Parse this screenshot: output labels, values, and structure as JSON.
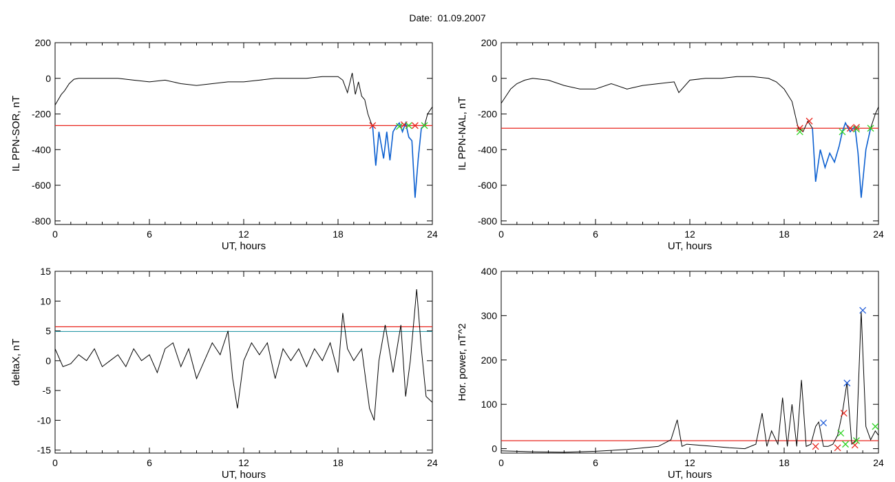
{
  "figure": {
    "title_label": "Date:",
    "title_value": "01.09.2007"
  },
  "colors": {
    "trace": "#000000",
    "threshold_red": "#e8231b",
    "threshold_teal": "#2c9aa8",
    "segment_blue": "#0b5fd0",
    "marker_red": "#e8231b",
    "marker_green": "#2bd21f",
    "marker_blue": "#1f5bd8"
  },
  "chart_data": [
    {
      "id": "panel-top-left",
      "type": "line",
      "xlabel": "UT, hours",
      "ylabel": "IL PPN-SOR, nT",
      "xlim": [
        0,
        24
      ],
      "ylim": [
        -820,
        200
      ],
      "xticks": [
        0,
        6,
        12,
        18,
        24
      ],
      "yticks": [
        -800,
        -600,
        -400,
        -200,
        0,
        200
      ],
      "series": [
        {
          "style": "black",
          "x": [
            0,
            0.2,
            0.4,
            0.6,
            0.9,
            1.2,
            1.5,
            2,
            3,
            4,
            5,
            6,
            7,
            8,
            9,
            10,
            11,
            12,
            13,
            14,
            15,
            16,
            17,
            17.5,
            18,
            18.3,
            18.6,
            18.9,
            19.1,
            19.3,
            19.5,
            19.7,
            19.9,
            20.1,
            20.2
          ],
          "y": [
            -150,
            -120,
            -90,
            -70,
            -30,
            -5,
            0,
            0,
            0,
            0,
            -10,
            -20,
            -10,
            -30,
            -40,
            -30,
            -20,
            -20,
            -10,
            0,
            0,
            0,
            10,
            10,
            10,
            -10,
            -80,
            30,
            -90,
            -20,
            -100,
            -120,
            -200,
            -250,
            -265
          ]
        },
        {
          "style": "blue",
          "x": [
            20.2,
            20.4,
            20.6,
            20.9,
            21.1,
            21.3,
            21.5,
            21.7,
            21.9,
            22.1,
            22.3,
            22.5,
            22.7,
            22.9,
            23.1,
            23.3,
            23.5
          ],
          "y": [
            -265,
            -490,
            -300,
            -450,
            -300,
            -460,
            -300,
            -270,
            -250,
            -300,
            -250,
            -330,
            -350,
            -670,
            -450,
            -280,
            -265
          ]
        },
        {
          "style": "black",
          "x": [
            23.5,
            23.7,
            24
          ],
          "y": [
            -265,
            -200,
            -160
          ]
        }
      ],
      "thresholds": [
        {
          "color": "red",
          "y": -265
        }
      ],
      "markers": [
        {
          "color": "red",
          "x": 20.2,
          "y": -265
        },
        {
          "color": "green",
          "x": 21.9,
          "y": -270
        },
        {
          "color": "red",
          "x": 22.2,
          "y": -260
        },
        {
          "color": "green",
          "x": 22.5,
          "y": -265
        },
        {
          "color": "red",
          "x": 22.9,
          "y": -265
        },
        {
          "color": "green",
          "x": 23.5,
          "y": -265
        }
      ]
    },
    {
      "id": "panel-top-right",
      "type": "line",
      "xlabel": "UT, hours",
      "ylabel": "IL PPN-NAL, nT",
      "xlim": [
        0,
        24
      ],
      "ylim": [
        -820,
        200
      ],
      "xticks": [
        0,
        6,
        12,
        18,
        24
      ],
      "yticks": [
        -800,
        -600,
        -400,
        -200,
        0,
        200
      ],
      "series": [
        {
          "style": "black",
          "x": [
            0,
            0.3,
            0.6,
            1,
            1.5,
            2,
            3,
            4,
            5,
            6,
            7,
            8,
            9,
            10,
            11,
            11.3,
            12,
            13,
            14,
            15,
            16,
            17,
            17.5,
            18,
            18.5,
            18.9,
            19.2,
            19.5,
            19.8
          ],
          "y": [
            -140,
            -100,
            -60,
            -30,
            -10,
            0,
            -10,
            -40,
            -60,
            -60,
            -30,
            -60,
            -40,
            -30,
            -20,
            -80,
            -10,
            0,
            0,
            10,
            10,
            0,
            -20,
            -60,
            -130,
            -280,
            -300,
            -240,
            -280
          ]
        },
        {
          "style": "blue",
          "x": [
            19.8,
            20.0,
            20.3,
            20.6,
            20.9,
            21.2,
            21.5,
            21.7,
            21.9,
            22.2,
            22.5,
            22.7,
            22.9,
            23.2,
            23.5
          ],
          "y": [
            -280,
            -580,
            -400,
            -500,
            -420,
            -470,
            -380,
            -300,
            -250,
            -300,
            -270,
            -420,
            -670,
            -400,
            -280
          ]
        },
        {
          "style": "black",
          "x": [
            23.5,
            23.8,
            24
          ],
          "y": [
            -280,
            -200,
            -160
          ]
        }
      ],
      "thresholds": [
        {
          "color": "red",
          "y": -280
        }
      ],
      "markers": [
        {
          "color": "red",
          "x": 19.0,
          "y": -280
        },
        {
          "color": "green",
          "x": 19.0,
          "y": -300
        },
        {
          "color": "red",
          "x": 19.6,
          "y": -240
        },
        {
          "color": "green",
          "x": 21.7,
          "y": -300
        },
        {
          "color": "red",
          "x": 22.2,
          "y": -280
        },
        {
          "color": "green",
          "x": 22.6,
          "y": -285
        },
        {
          "color": "red",
          "x": 22.6,
          "y": -275
        },
        {
          "color": "green",
          "x": 23.5,
          "y": -280
        }
      ]
    },
    {
      "id": "panel-bottom-left",
      "type": "line",
      "xlabel": "UT, hours",
      "ylabel": "deltaX, nT",
      "xlim": [
        0,
        24
      ],
      "ylim": [
        -15.5,
        15
      ],
      "xticks": [
        0,
        6,
        12,
        18,
        24
      ],
      "yticks": [
        -15,
        -10,
        -5,
        0,
        5,
        10,
        15
      ],
      "series": [
        {
          "style": "black",
          "x": [
            0,
            0.5,
            1,
            1.5,
            2,
            2.5,
            3,
            3.5,
            4,
            4.5,
            5,
            5.5,
            6,
            6.5,
            7,
            7.5,
            8,
            8.5,
            9,
            9.5,
            10,
            10.5,
            11,
            11.3,
            11.6,
            12,
            12.5,
            13,
            13.5,
            14,
            14.5,
            15,
            15.5,
            16,
            16.5,
            17,
            17.5,
            18,
            18.3,
            18.6,
            19,
            19.5,
            20,
            20.3,
            20.6,
            21,
            21.5,
            22,
            22.3,
            22.6,
            23,
            23.3,
            23.6,
            24
          ],
          "y": [
            2,
            -1,
            -0.5,
            1,
            0,
            2,
            -1,
            0,
            1,
            -1,
            2,
            0,
            1,
            -2,
            2,
            3,
            -1,
            2,
            -3,
            0,
            3,
            1,
            5,
            -3,
            -8,
            0,
            3,
            1,
            3,
            -3,
            2,
            0,
            2,
            -1,
            2,
            0,
            3,
            -2,
            8,
            2,
            0,
            2,
            -8,
            -10,
            0,
            6,
            -2,
            6,
            -6,
            0,
            12,
            2,
            -6,
            -7
          ]
        }
      ],
      "thresholds": [
        {
          "color": "red",
          "y": 5.7
        },
        {
          "color": "teal",
          "y": 4.9
        }
      ],
      "markers": []
    },
    {
      "id": "panel-bottom-right",
      "type": "line",
      "xlabel": "UT, hours",
      "ylabel": "Hor. power, nT^2",
      "xlim": [
        0,
        24
      ],
      "ylim": [
        -10,
        400
      ],
      "xticks": [
        0,
        6,
        12,
        18,
        24
      ],
      "yticks": [
        0,
        100,
        200,
        300,
        400
      ],
      "series": [
        {
          "style": "black",
          "x": [
            0,
            2,
            4,
            6,
            8,
            10,
            10.8,
            11.2,
            11.5,
            11.8,
            12.5,
            13.5,
            14.5,
            15.5,
            16.2,
            16.6,
            16.9,
            17.2,
            17.6,
            17.9,
            18.2,
            18.5,
            18.8,
            19.1,
            19.4,
            19.7,
            20.0,
            20.2,
            20.5,
            20.8,
            21.1,
            21.4,
            21.7,
            22.0,
            22.3,
            22.6,
            22.9,
            23.2,
            23.5,
            23.8,
            24
          ],
          "y": [
            -5,
            -7,
            -8,
            -6,
            -2,
            5,
            20,
            65,
            5,
            10,
            8,
            5,
            2,
            0,
            10,
            80,
            5,
            40,
            10,
            115,
            5,
            100,
            5,
            155,
            5,
            10,
            50,
            60,
            5,
            5,
            10,
            30,
            80,
            150,
            10,
            20,
            310,
            50,
            20,
            40,
            30
          ]
        }
      ],
      "thresholds": [
        {
          "color": "red",
          "y": 18
        }
      ],
      "markers": [
        {
          "color": "red",
          "x": 20.0,
          "y": 5
        },
        {
          "color": "blue",
          "x": 20.5,
          "y": 58
        },
        {
          "color": "red",
          "x": 21.4,
          "y": 2
        },
        {
          "color": "green",
          "x": 21.6,
          "y": 35
        },
        {
          "color": "red",
          "x": 21.8,
          "y": 80
        },
        {
          "color": "green",
          "x": 21.9,
          "y": 10
        },
        {
          "color": "blue",
          "x": 22.0,
          "y": 148
        },
        {
          "color": "red",
          "x": 22.5,
          "y": 8
        },
        {
          "color": "green",
          "x": 22.6,
          "y": 18
        },
        {
          "color": "blue",
          "x": 23.0,
          "y": 312
        },
        {
          "color": "green",
          "x": 23.8,
          "y": 50
        }
      ]
    }
  ]
}
